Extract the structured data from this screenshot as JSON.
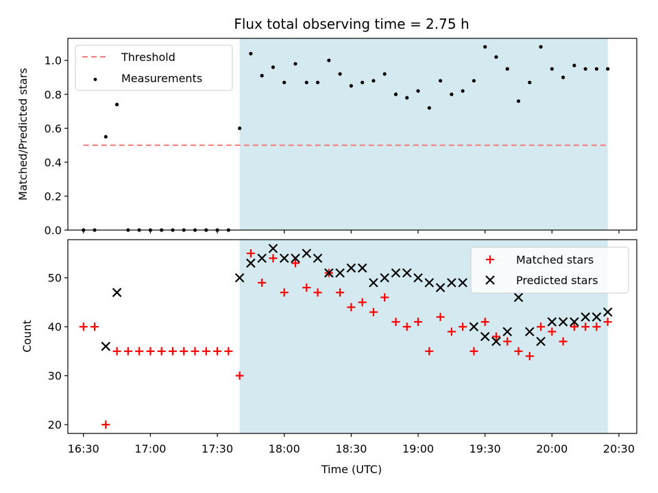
{
  "chart_data": [
    {
      "type": "scatter",
      "title": "Flux total observing time = 2.75 h",
      "xlabel": "",
      "ylabel": "Matched/Predicted stars",
      "ylim": [
        0,
        1.13
      ],
      "yticks": [
        0.0,
        0.2,
        0.4,
        0.6,
        0.8,
        1.0
      ],
      "ytick_labels": [
        "0.0",
        "0.2",
        "0.4",
        "0.6",
        "0.8",
        "1.0"
      ],
      "x_range": [
        "16:23",
        "20:38"
      ],
      "highlight_span": {
        "from": "17:40",
        "to": "20:25",
        "color": "#d4eaf0"
      },
      "legend": {
        "position": "top-left",
        "entries": [
          "Threshold",
          "Measurements"
        ]
      },
      "series": [
        {
          "name": "Threshold",
          "style": "dashed-line",
          "color": "#f27c7c",
          "x": [
            "16:30",
            "20:25"
          ],
          "y": [
            0.5,
            0.5
          ]
        },
        {
          "name": "Measurements",
          "style": "dot",
          "color": "#000000",
          "x": [
            "16:30",
            "16:35",
            "16:40",
            "16:45",
            "16:50",
            "16:55",
            "17:00",
            "17:05",
            "17:10",
            "17:15",
            "17:20",
            "17:25",
            "17:30",
            "17:35",
            "17:40",
            "17:45",
            "17:50",
            "17:55",
            "18:00",
            "18:05",
            "18:10",
            "18:15",
            "18:20",
            "18:25",
            "18:30",
            "18:35",
            "18:40",
            "18:45",
            "18:50",
            "18:55",
            "19:00",
            "19:05",
            "19:10",
            "19:15",
            "19:20",
            "19:25",
            "19:30",
            "19:35",
            "19:40",
            "19:45",
            "19:50",
            "19:55",
            "20:00",
            "20:05",
            "20:10",
            "20:15",
            "20:20",
            "20:25"
          ],
          "y": [
            0.0,
            0.0,
            0.55,
            0.74,
            0.0,
            0.0,
            0.0,
            0.0,
            0.0,
            0.0,
            0.0,
            0.0,
            0.0,
            0.0,
            0.6,
            1.04,
            0.91,
            0.96,
            0.87,
            0.98,
            0.87,
            0.87,
            1.0,
            0.92,
            0.85,
            0.87,
            0.88,
            0.92,
            0.8,
            0.78,
            0.82,
            0.72,
            0.88,
            0.8,
            0.82,
            0.88,
            1.08,
            1.02,
            0.95,
            0.76,
            0.87,
            1.08,
            0.95,
            0.9,
            0.97,
            0.95,
            0.95,
            0.95
          ]
        }
      ]
    },
    {
      "type": "scatter",
      "title": "",
      "xlabel": "Time (UTC)",
      "ylabel": "Count",
      "ylim": [
        18.2,
        57.8
      ],
      "yticks": [
        20,
        30,
        40,
        50
      ],
      "ytick_labels": [
        "20",
        "30",
        "40",
        "50"
      ],
      "x_range": [
        "16:23",
        "20:38"
      ],
      "xticks": [
        "16:30",
        "17:00",
        "17:30",
        "18:00",
        "18:30",
        "19:00",
        "19:30",
        "20:00",
        "20:30"
      ],
      "highlight_span": {
        "from": "17:40",
        "to": "20:25",
        "color": "#d4eaf0"
      },
      "legend": {
        "position": "top-right",
        "entries": [
          "Matched stars",
          "Predicted stars"
        ]
      },
      "series": [
        {
          "name": "Matched stars",
          "marker": "plus",
          "color": "#ff0000",
          "x": [
            "16:30",
            "16:35",
            "16:40",
            "16:45",
            "16:50",
            "16:55",
            "17:00",
            "17:05",
            "17:10",
            "17:15",
            "17:20",
            "17:25",
            "17:30",
            "17:35",
            "17:40",
            "17:45",
            "17:50",
            "17:55",
            "18:00",
            "18:05",
            "18:10",
            "18:15",
            "18:20",
            "18:25",
            "18:30",
            "18:35",
            "18:40",
            "18:45",
            "18:50",
            "18:55",
            "19:00",
            "19:05",
            "19:10",
            "19:15",
            "19:20",
            "19:25",
            "19:30",
            "19:35",
            "19:40",
            "19:45",
            "19:50",
            "19:55",
            "20:00",
            "20:05",
            "20:10",
            "20:15",
            "20:20",
            "20:25"
          ],
          "y": [
            40,
            40,
            20,
            35,
            35,
            35,
            35,
            35,
            35,
            35,
            35,
            35,
            35,
            35,
            30,
            55,
            49,
            54,
            47,
            53,
            48,
            47,
            51,
            47,
            44,
            45,
            43,
            46,
            41,
            40,
            41,
            35,
            42,
            39,
            40,
            35,
            41,
            38,
            37,
            35,
            34,
            40,
            39,
            37,
            40,
            40,
            40,
            41
          ]
        },
        {
          "name": "Predicted stars",
          "marker": "x",
          "color": "#000000",
          "x": [
            "16:40",
            "16:45",
            "17:40",
            "17:45",
            "17:50",
            "17:55",
            "18:00",
            "18:05",
            "18:10",
            "18:15",
            "18:20",
            "18:25",
            "18:30",
            "18:35",
            "18:40",
            "18:45",
            "18:50",
            "18:55",
            "19:00",
            "19:05",
            "19:10",
            "19:15",
            "19:20",
            "19:25",
            "19:30",
            "19:35",
            "19:40",
            "19:45",
            "19:50",
            "19:55",
            "20:00",
            "20:05",
            "20:10",
            "20:15",
            "20:20",
            "20:25"
          ],
          "y": [
            36,
            47,
            50,
            53,
            54,
            56,
            54,
            54,
            55,
            54,
            51,
            51,
            52,
            52,
            49,
            50,
            51,
            51,
            50,
            49,
            48,
            49,
            49,
            40,
            38,
            37,
            39,
            46,
            39,
            37,
            41,
            41,
            41,
            42,
            42,
            43
          ]
        }
      ]
    }
  ]
}
